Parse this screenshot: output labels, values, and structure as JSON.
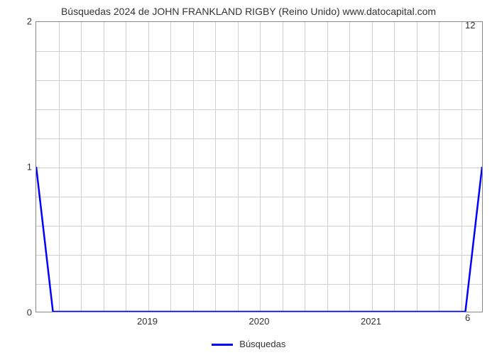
{
  "chart": {
    "type": "line",
    "title": "Búsquedas 2024 de JOHN FRANKLAND RIGBY (Reino Unido) www.datocapital.com",
    "title_fontsize": 14,
    "title_color": "#333333",
    "background_color": "#ffffff",
    "plot_border_color": "#888888",
    "grid_color": "#d0d0d0",
    "xlim": [
      2018,
      2022
    ],
    "ylim": [
      0,
      2
    ],
    "x_major_ticks": [
      2019,
      2020,
      2021
    ],
    "x_minor_count": 4,
    "y_major_ticks": [
      0,
      1,
      2
    ],
    "y_minor_count": 4,
    "y_label_fontsize": 13,
    "x_label_fontsize": 13,
    "secondary_y_top": "12",
    "secondary_y_bottom": "6",
    "series": {
      "name": "Búsquedas",
      "color": "#0000ff",
      "line_width": 2.5,
      "x": [
        2018.0,
        2018.15,
        2021.85,
        2022.0
      ],
      "y": [
        1.0,
        0.0,
        0.0,
        1.0
      ]
    },
    "legend": {
      "label": "Búsquedas",
      "position": "bottom-center",
      "line_color": "#0000ff",
      "fontsize": 13
    }
  }
}
